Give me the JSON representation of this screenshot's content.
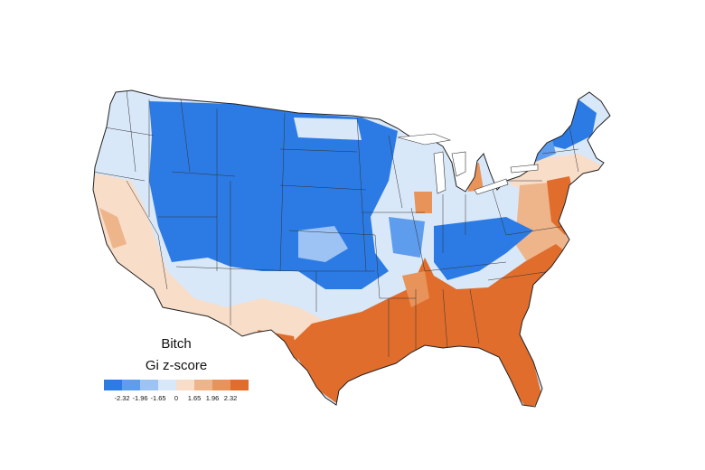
{
  "map": {
    "title": "Bitch",
    "legend_title": "Gi z-score",
    "legend": {
      "bins": [
        {
          "color": "#2c7be5"
        },
        {
          "color": "#5e9ced"
        },
        {
          "color": "#9cc3f3"
        },
        {
          "color": "#d9e8f8"
        },
        {
          "color": "#f8ddc9"
        },
        {
          "color": "#eeb48a"
        },
        {
          "color": "#e8935a"
        },
        {
          "color": "#e06d2c"
        }
      ],
      "tick_labels": [
        "-2.32",
        "-1.96",
        "-1.65",
        "0",
        "1.65",
        "1.96",
        "2.32"
      ]
    },
    "colors": {
      "strong_negative": "#2c7be5",
      "moderate_negative": "#5e9ced",
      "weak_negative": "#9cc3f3",
      "neutral_negative": "#d9e8f8",
      "neutral_positive": "#f8ddc9",
      "weak_positive": "#eeb48a",
      "moderate_positive": "#e8935a",
      "strong_positive": "#e06d2c",
      "border": "#333333"
    }
  }
}
